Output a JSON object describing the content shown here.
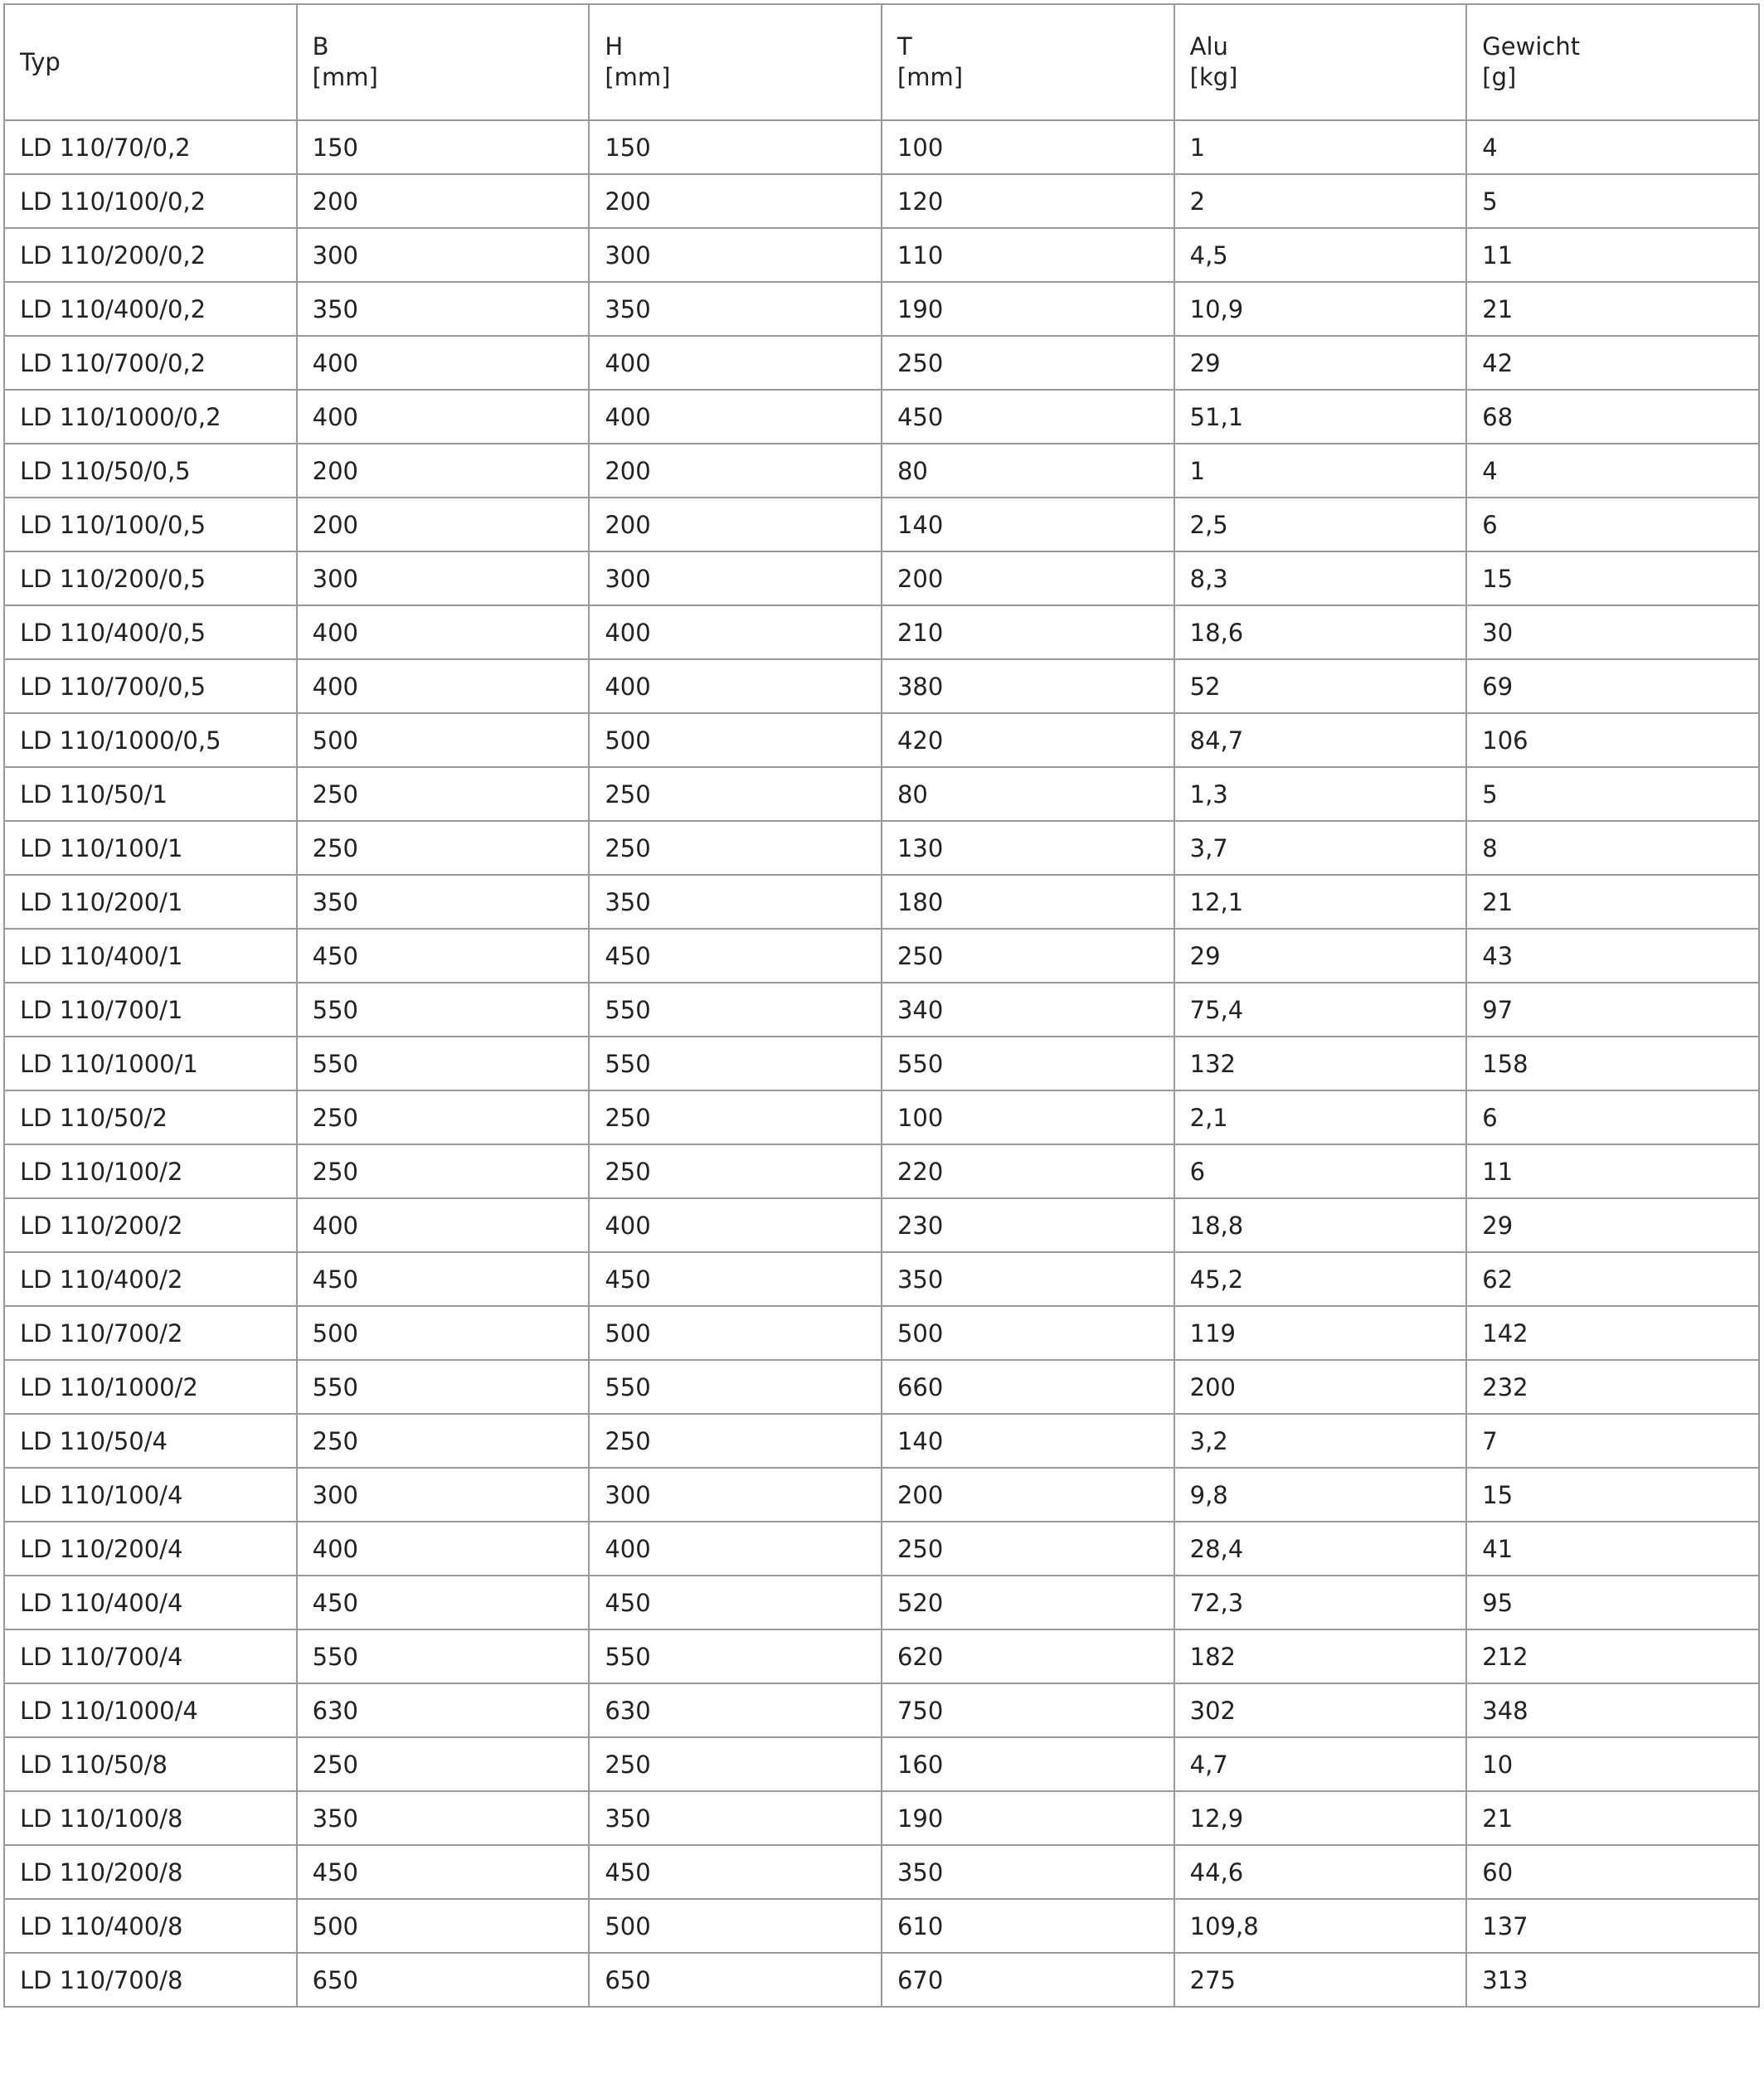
{
  "table": {
    "header": [
      {
        "label": "Typ"
      },
      {
        "label": "B",
        "unit": "[mm]"
      },
      {
        "label": "H",
        "unit": "[mm]"
      },
      {
        "label": "T",
        "unit": "[mm]"
      },
      {
        "label": "Alu",
        "unit": "[kg]"
      },
      {
        "label": "Gewicht",
        "unit": "[g]"
      }
    ],
    "rows": [
      [
        "LD 110/70/0,2",
        "150",
        "150",
        "100",
        "1",
        "4"
      ],
      [
        "LD 110/100/0,2",
        "200",
        "200",
        "120",
        "2",
        "5"
      ],
      [
        "LD 110/200/0,2",
        "300",
        "300",
        "110",
        "4,5",
        "11"
      ],
      [
        "LD 110/400/0,2",
        "350",
        "350",
        "190",
        "10,9",
        "21"
      ],
      [
        "LD 110/700/0,2",
        "400",
        "400",
        "250",
        "29",
        "42"
      ],
      [
        "LD 110/1000/0,2",
        "400",
        "400",
        "450",
        "51,1",
        "68"
      ],
      [
        "LD 110/50/0,5",
        "200",
        "200",
        "80",
        "1",
        "4"
      ],
      [
        "LD 110/100/0,5",
        "200",
        "200",
        "140",
        "2,5",
        "6"
      ],
      [
        "LD 110/200/0,5",
        "300",
        "300",
        "200",
        "8,3",
        "15"
      ],
      [
        "LD 110/400/0,5",
        "400",
        "400",
        "210",
        "18,6",
        "30"
      ],
      [
        "LD 110/700/0,5",
        "400",
        "400",
        "380",
        "52",
        "69"
      ],
      [
        "LD 110/1000/0,5",
        "500",
        "500",
        "420",
        "84,7",
        "106"
      ],
      [
        "LD 110/50/1",
        "250",
        "250",
        "80",
        "1,3",
        "5"
      ],
      [
        "LD 110/100/1",
        "250",
        "250",
        "130",
        "3,7",
        "8"
      ],
      [
        "LD 110/200/1",
        "350",
        "350",
        "180",
        "12,1",
        "21"
      ],
      [
        "LD 110/400/1",
        "450",
        "450",
        "250",
        "29",
        "43"
      ],
      [
        "LD 110/700/1",
        "550",
        "550",
        "340",
        "75,4",
        "97"
      ],
      [
        "LD 110/1000/1",
        "550",
        "550",
        "550",
        "132",
        "158"
      ],
      [
        "LD 110/50/2",
        "250",
        "250",
        "100",
        "2,1",
        "6"
      ],
      [
        "LD 110/100/2",
        "250",
        "250",
        "220",
        "6",
        "11"
      ],
      [
        "LD 110/200/2",
        "400",
        "400",
        "230",
        "18,8",
        "29"
      ],
      [
        "LD 110/400/2",
        "450",
        "450",
        "350",
        "45,2",
        "62"
      ],
      [
        "LD 110/700/2",
        "500",
        "500",
        "500",
        "119",
        "142"
      ],
      [
        "LD 110/1000/2",
        "550",
        "550",
        "660",
        "200",
        "232"
      ],
      [
        "LD 110/50/4",
        "250",
        "250",
        "140",
        "3,2",
        "7"
      ],
      [
        "LD 110/100/4",
        "300",
        "300",
        "200",
        "9,8",
        "15"
      ],
      [
        "LD 110/200/4",
        "400",
        "400",
        "250",
        "28,4",
        "41"
      ],
      [
        "LD 110/400/4",
        "450",
        "450",
        "520",
        "72,3",
        "95"
      ],
      [
        "LD 110/700/4",
        "550",
        "550",
        "620",
        "182",
        "212"
      ],
      [
        "LD 110/1000/4",
        "630",
        "630",
        "750",
        "302",
        "348"
      ],
      [
        "LD 110/50/8",
        "250",
        "250",
        "160",
        "4,7",
        "10"
      ],
      [
        "LD 110/100/8",
        "350",
        "350",
        "190",
        "12,9",
        "21"
      ],
      [
        "LD 110/200/8",
        "450",
        "450",
        "350",
        "44,6",
        "60"
      ],
      [
        "LD 110/400/8",
        "500",
        "500",
        "610",
        "109,8",
        "137"
      ],
      [
        "LD 110/700/8",
        "650",
        "650",
        "670",
        "275",
        "313"
      ]
    ]
  }
}
